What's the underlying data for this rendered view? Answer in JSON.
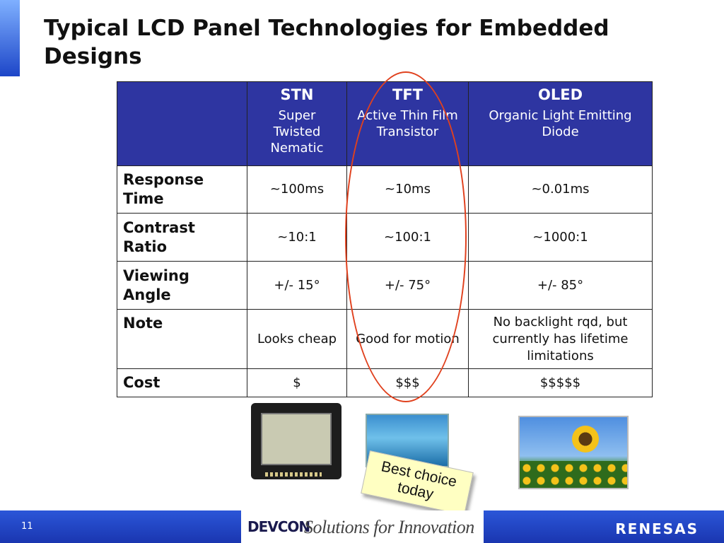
{
  "slide": {
    "title": "Typical LCD Panel Technologies for Embedded Designs",
    "page_number": "11"
  },
  "table": {
    "columns": [
      {
        "name": "STN",
        "desc": "Super Twisted Nematic"
      },
      {
        "name": "TFT",
        "desc": "Active Thin Film Transistor"
      },
      {
        "name": "OLED",
        "desc": "Organic Light Emitting Diode"
      }
    ],
    "rows": [
      {
        "label": "Response Time",
        "values": [
          "~100ms",
          "~10ms",
          "~0.01ms"
        ]
      },
      {
        "label": "Contrast Ratio",
        "values": [
          "~10:1",
          "~100:1",
          "~1000:1"
        ]
      },
      {
        "label": "Viewing Angle",
        "values": [
          "+/- 15°",
          "+/- 75°",
          "+/- 85°"
        ]
      },
      {
        "label": "Note",
        "values": [
          "Looks cheap",
          "Good for motion",
          "No backlight rqd, but currently has lifetime limitations"
        ]
      },
      {
        "label": "Cost",
        "values": [
          "$",
          "$$$",
          "$$$$$"
        ]
      }
    ]
  },
  "callout": {
    "text": "Best choice today"
  },
  "footer": {
    "event_logo": "DEVCON",
    "tagline": "Solutions for Innovation",
    "company_logo": "RENESAS"
  },
  "colors": {
    "header_bg": "#2e35a1",
    "highlight_oval": "#e0411e",
    "footer_blue": "#1a36b0",
    "callout_bg": "#ffffc2"
  }
}
